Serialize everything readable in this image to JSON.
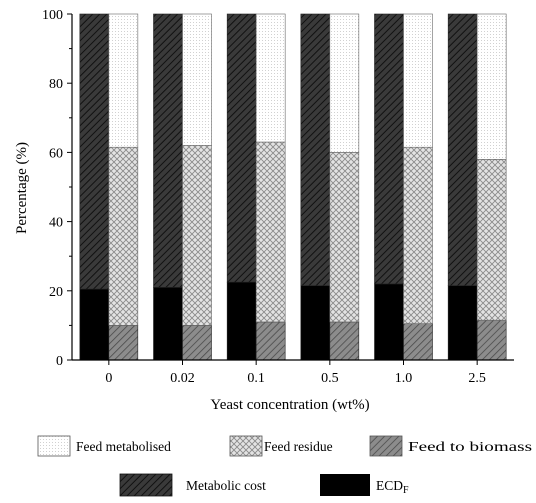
{
  "chart_data": {
    "type": "bar",
    "ylabel": "Percentage (%)",
    "xlabel": "Yeast concentration (wt%)",
    "ylim": [
      0,
      100
    ],
    "yticks": [
      0,
      20,
      40,
      60,
      80,
      100
    ],
    "grid": false,
    "categories": [
      "0",
      "0.02",
      "0.1",
      "0.5",
      "1.0",
      "2.5"
    ],
    "left_stack": [
      {
        "name": "ECD",
        "name_sub": "F",
        "pattern": "solid-black",
        "values": [
          20.5,
          21.0,
          22.5,
          21.5,
          22.0,
          21.5
        ]
      },
      {
        "name": "Metabolic cost",
        "pattern": "dark-hatch",
        "values": [
          79.5,
          79.0,
          77.5,
          78.5,
          78.0,
          78.5
        ]
      }
    ],
    "right_stack": [
      {
        "name": "Feed to biomass",
        "pattern": "grey-hatch",
        "values": [
          10.0,
          10.0,
          11.0,
          11.0,
          10.5,
          11.5
        ]
      },
      {
        "name": "Feed residue",
        "pattern": "crosshatch",
        "values": [
          51.5,
          52.0,
          52.0,
          49.0,
          51.0,
          46.5
        ]
      },
      {
        "name": "Feed metabolised",
        "pattern": "dotted",
        "values": [
          38.5,
          38.0,
          37.0,
          40.0,
          38.5,
          42.0
        ]
      }
    ],
    "legend": {
      "placement": "bottom",
      "rows": [
        [
          "Feed metabolised",
          "Feed residue",
          "Feed to biomass"
        ],
        [
          "Metabolic cost",
          "ECD"
        ]
      ]
    }
  }
}
